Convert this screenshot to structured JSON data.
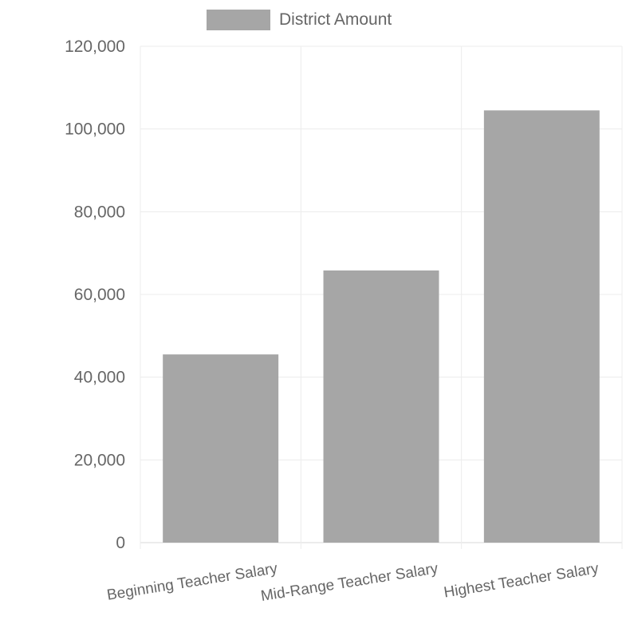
{
  "chart_data": {
    "type": "bar",
    "categories": [
      "Beginning Teacher Salary",
      "Mid-Range Teacher Salary",
      "Highest Teacher Salary"
    ],
    "series": [
      {
        "name": "District Amount",
        "values": [
          45500,
          65800,
          104500
        ]
      }
    ],
    "ylim": [
      0,
      120000
    ],
    "yticks": [
      "0",
      "20,000",
      "40,000",
      "60,000",
      "80,000",
      "100,000",
      "120,000"
    ],
    "ytick_values": [
      0,
      20000,
      40000,
      60000,
      80000,
      100000,
      120000
    ],
    "grid": true,
    "legend_position": "top-center",
    "colors": {
      "bar": "#a6a6a6",
      "grid": "#ececec",
      "text": "#666666"
    }
  }
}
